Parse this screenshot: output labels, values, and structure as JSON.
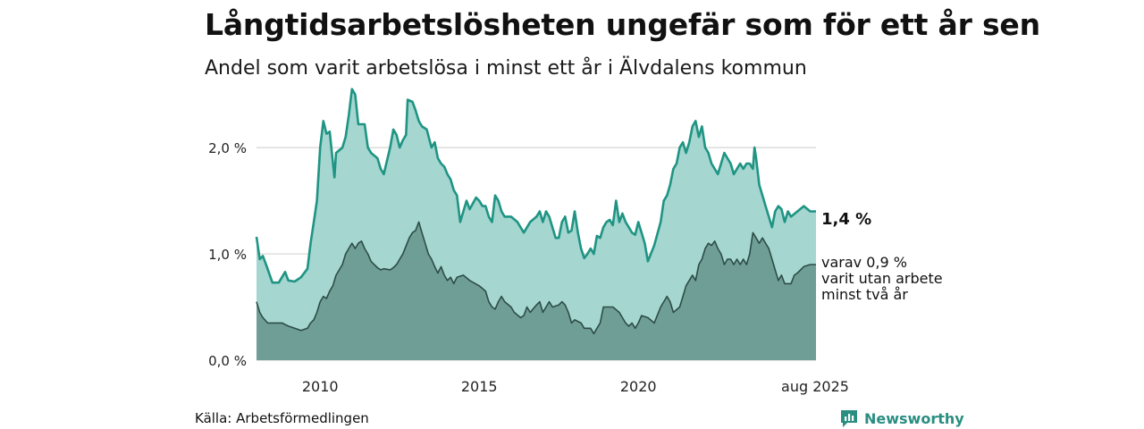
{
  "header": {
    "title": "Långtidsarbetslösheten ungefär som för ett år sen",
    "subtitle": "Andel som varit arbetslösa i minst ett år i Älvdalens kommun"
  },
  "footer": {
    "source": "Källa: Arbetsförmedlingen",
    "brand": "Newsworthy"
  },
  "colors": {
    "total_line": "#1f9483",
    "total_fill": "#a5d6d0",
    "long_line": "#2d4c47",
    "long_fill": "#6f9e97",
    "grid": "#d4d4d4",
    "brand": "#2a8e81"
  },
  "chart_data": {
    "type": "area",
    "title": "Långtidsarbetslösheten ungefär som för ett år sen",
    "subtitle": "Andel som varit arbetslösa i minst ett år i Älvdalens kommun",
    "x_range": [
      2008.0,
      2025.583
    ],
    "ylim": [
      0,
      2.8
    ],
    "y_ticks": [
      0,
      1,
      2
    ],
    "y_tick_labels": [
      "0,0 %",
      "1,0 %",
      "2,0 %"
    ],
    "x_ticks": [
      2010,
      2015,
      2020,
      2025.583
    ],
    "x_tick_labels": [
      "2010",
      "2015",
      "2020",
      "aug 2025"
    ],
    "grid": true,
    "series": [
      {
        "key": "total",
        "end_label": "1,4 %",
        "points": [
          [
            2008.0,
            1.16
          ],
          [
            2008.1,
            0.95
          ],
          [
            2008.2,
            0.98
          ],
          [
            2008.3,
            0.9
          ],
          [
            2008.5,
            0.73
          ],
          [
            2008.7,
            0.73
          ],
          [
            2008.9,
            0.83
          ],
          [
            2009.0,
            0.75
          ],
          [
            2009.2,
            0.74
          ],
          [
            2009.4,
            0.78
          ],
          [
            2009.6,
            0.86
          ],
          [
            2009.7,
            1.1
          ],
          [
            2009.8,
            1.3
          ],
          [
            2009.9,
            1.5
          ],
          [
            2010.0,
            2.0
          ],
          [
            2010.1,
            2.25
          ],
          [
            2010.2,
            2.13
          ],
          [
            2010.3,
            2.15
          ],
          [
            2010.45,
            1.72
          ],
          [
            2010.5,
            1.95
          ],
          [
            2010.7,
            2.0
          ],
          [
            2010.8,
            2.1
          ],
          [
            2010.9,
            2.3
          ],
          [
            2011.0,
            2.55
          ],
          [
            2011.1,
            2.5
          ],
          [
            2011.2,
            2.22
          ],
          [
            2011.4,
            2.22
          ],
          [
            2011.5,
            2.0
          ],
          [
            2011.6,
            1.95
          ],
          [
            2011.8,
            1.9
          ],
          [
            2011.9,
            1.8
          ],
          [
            2012.0,
            1.75
          ],
          [
            2012.2,
            2.0
          ],
          [
            2012.3,
            2.17
          ],
          [
            2012.4,
            2.12
          ],
          [
            2012.5,
            2.0
          ],
          [
            2012.6,
            2.07
          ],
          [
            2012.7,
            2.12
          ],
          [
            2012.75,
            2.45
          ],
          [
            2012.9,
            2.43
          ],
          [
            2013.0,
            2.35
          ],
          [
            2013.1,
            2.25
          ],
          [
            2013.2,
            2.2
          ],
          [
            2013.35,
            2.17
          ],
          [
            2013.5,
            2.0
          ],
          [
            2013.6,
            2.05
          ],
          [
            2013.7,
            1.9
          ],
          [
            2013.8,
            1.85
          ],
          [
            2013.9,
            1.82
          ],
          [
            2014.0,
            1.75
          ],
          [
            2014.1,
            1.7
          ],
          [
            2014.2,
            1.6
          ],
          [
            2014.3,
            1.55
          ],
          [
            2014.4,
            1.3
          ],
          [
            2014.6,
            1.5
          ],
          [
            2014.7,
            1.42
          ],
          [
            2014.9,
            1.53
          ],
          [
            2015.0,
            1.5
          ],
          [
            2015.1,
            1.45
          ],
          [
            2015.2,
            1.45
          ],
          [
            2015.3,
            1.35
          ],
          [
            2015.4,
            1.3
          ],
          [
            2015.5,
            1.55
          ],
          [
            2015.6,
            1.5
          ],
          [
            2015.7,
            1.4
          ],
          [
            2015.8,
            1.35
          ],
          [
            2016.0,
            1.35
          ],
          [
            2016.2,
            1.3
          ],
          [
            2016.4,
            1.2
          ],
          [
            2016.6,
            1.3
          ],
          [
            2016.8,
            1.35
          ],
          [
            2016.9,
            1.4
          ],
          [
            2017.0,
            1.3
          ],
          [
            2017.1,
            1.4
          ],
          [
            2017.2,
            1.35
          ],
          [
            2017.4,
            1.15
          ],
          [
            2017.5,
            1.15
          ],
          [
            2017.6,
            1.3
          ],
          [
            2017.7,
            1.35
          ],
          [
            2017.8,
            1.2
          ],
          [
            2017.9,
            1.22
          ],
          [
            2018.0,
            1.4
          ],
          [
            2018.1,
            1.2
          ],
          [
            2018.2,
            1.05
          ],
          [
            2018.3,
            0.96
          ],
          [
            2018.4,
            1.0
          ],
          [
            2018.5,
            1.05
          ],
          [
            2018.6,
            1.0
          ],
          [
            2018.7,
            1.17
          ],
          [
            2018.8,
            1.15
          ],
          [
            2018.9,
            1.25
          ],
          [
            2019.0,
            1.3
          ],
          [
            2019.1,
            1.32
          ],
          [
            2019.2,
            1.27
          ],
          [
            2019.3,
            1.5
          ],
          [
            2019.4,
            1.3
          ],
          [
            2019.5,
            1.38
          ],
          [
            2019.6,
            1.3
          ],
          [
            2019.7,
            1.25
          ],
          [
            2019.8,
            1.2
          ],
          [
            2019.9,
            1.18
          ],
          [
            2020.0,
            1.3
          ],
          [
            2020.1,
            1.2
          ],
          [
            2020.2,
            1.1
          ],
          [
            2020.3,
            0.93
          ],
          [
            2020.5,
            1.08
          ],
          [
            2020.7,
            1.3
          ],
          [
            2020.8,
            1.5
          ],
          [
            2020.9,
            1.55
          ],
          [
            2021.0,
            1.65
          ],
          [
            2021.1,
            1.8
          ],
          [
            2021.2,
            1.85
          ],
          [
            2021.3,
            2.0
          ],
          [
            2021.4,
            2.05
          ],
          [
            2021.5,
            1.95
          ],
          [
            2021.6,
            2.05
          ],
          [
            2021.7,
            2.2
          ],
          [
            2021.8,
            2.25
          ],
          [
            2021.9,
            2.1
          ],
          [
            2022.0,
            2.2
          ],
          [
            2022.1,
            2.0
          ],
          [
            2022.2,
            1.95
          ],
          [
            2022.3,
            1.85
          ],
          [
            2022.4,
            1.8
          ],
          [
            2022.5,
            1.75
          ],
          [
            2022.6,
            1.85
          ],
          [
            2022.7,
            1.95
          ],
          [
            2022.8,
            1.9
          ],
          [
            2022.9,
            1.85
          ],
          [
            2023.0,
            1.75
          ],
          [
            2023.1,
            1.8
          ],
          [
            2023.2,
            1.85
          ],
          [
            2023.3,
            1.8
          ],
          [
            2023.4,
            1.85
          ],
          [
            2023.5,
            1.85
          ],
          [
            2023.6,
            1.8
          ],
          [
            2023.65,
            2.0
          ],
          [
            2023.7,
            1.9
          ],
          [
            2023.8,
            1.65
          ],
          [
            2023.9,
            1.55
          ],
          [
            2024.0,
            1.45
          ],
          [
            2024.1,
            1.35
          ],
          [
            2024.2,
            1.25
          ],
          [
            2024.3,
            1.4
          ],
          [
            2024.4,
            1.45
          ],
          [
            2024.5,
            1.42
          ],
          [
            2024.6,
            1.3
          ],
          [
            2024.7,
            1.4
          ],
          [
            2024.8,
            1.35
          ],
          [
            2025.0,
            1.4
          ],
          [
            2025.2,
            1.45
          ],
          [
            2025.4,
            1.4
          ],
          [
            2025.583,
            1.4
          ]
        ]
      },
      {
        "key": "long",
        "end_label_lines": [
          "varav 0,9 %",
          "varit utan arbete",
          "minst två år"
        ],
        "points": [
          [
            2008.0,
            0.55
          ],
          [
            2008.1,
            0.45
          ],
          [
            2008.2,
            0.4
          ],
          [
            2008.35,
            0.35
          ],
          [
            2008.6,
            0.35
          ],
          [
            2008.8,
            0.35
          ],
          [
            2009.0,
            0.32
          ],
          [
            2009.2,
            0.3
          ],
          [
            2009.4,
            0.28
          ],
          [
            2009.6,
            0.3
          ],
          [
            2009.7,
            0.35
          ],
          [
            2009.8,
            0.38
          ],
          [
            2009.9,
            0.45
          ],
          [
            2010.0,
            0.55
          ],
          [
            2010.1,
            0.6
          ],
          [
            2010.2,
            0.58
          ],
          [
            2010.3,
            0.65
          ],
          [
            2010.4,
            0.7
          ],
          [
            2010.5,
            0.8
          ],
          [
            2010.6,
            0.85
          ],
          [
            2010.7,
            0.9
          ],
          [
            2010.8,
            1.0
          ],
          [
            2010.9,
            1.05
          ],
          [
            2011.0,
            1.1
          ],
          [
            2011.1,
            1.05
          ],
          [
            2011.2,
            1.1
          ],
          [
            2011.3,
            1.12
          ],
          [
            2011.4,
            1.05
          ],
          [
            2011.5,
            1.0
          ],
          [
            2011.6,
            0.93
          ],
          [
            2011.7,
            0.9
          ],
          [
            2011.8,
            0.87
          ],
          [
            2011.9,
            0.85
          ],
          [
            2012.0,
            0.86
          ],
          [
            2012.2,
            0.85
          ],
          [
            2012.3,
            0.87
          ],
          [
            2012.4,
            0.9
          ],
          [
            2012.5,
            0.95
          ],
          [
            2012.6,
            1.0
          ],
          [
            2012.8,
            1.15
          ],
          [
            2012.9,
            1.2
          ],
          [
            2013.0,
            1.22
          ],
          [
            2013.1,
            1.3
          ],
          [
            2013.2,
            1.2
          ],
          [
            2013.3,
            1.1
          ],
          [
            2013.4,
            1.0
          ],
          [
            2013.5,
            0.95
          ],
          [
            2013.6,
            0.88
          ],
          [
            2013.7,
            0.82
          ],
          [
            2013.8,
            0.88
          ],
          [
            2013.9,
            0.8
          ],
          [
            2014.0,
            0.75
          ],
          [
            2014.1,
            0.78
          ],
          [
            2014.2,
            0.72
          ],
          [
            2014.3,
            0.78
          ],
          [
            2014.5,
            0.8
          ],
          [
            2014.7,
            0.75
          ],
          [
            2015.0,
            0.7
          ],
          [
            2015.2,
            0.65
          ],
          [
            2015.3,
            0.55
          ],
          [
            2015.4,
            0.5
          ],
          [
            2015.5,
            0.48
          ],
          [
            2015.6,
            0.55
          ],
          [
            2015.7,
            0.6
          ],
          [
            2015.8,
            0.55
          ],
          [
            2016.0,
            0.5
          ],
          [
            2016.1,
            0.45
          ],
          [
            2016.3,
            0.4
          ],
          [
            2016.4,
            0.42
          ],
          [
            2016.5,
            0.5
          ],
          [
            2016.6,
            0.45
          ],
          [
            2016.8,
            0.52
          ],
          [
            2016.9,
            0.55
          ],
          [
            2017.0,
            0.45
          ],
          [
            2017.2,
            0.55
          ],
          [
            2017.3,
            0.5
          ],
          [
            2017.5,
            0.52
          ],
          [
            2017.6,
            0.55
          ],
          [
            2017.7,
            0.52
          ],
          [
            2017.8,
            0.45
          ],
          [
            2017.9,
            0.35
          ],
          [
            2018.0,
            0.38
          ],
          [
            2018.2,
            0.35
          ],
          [
            2018.3,
            0.3
          ],
          [
            2018.5,
            0.3
          ],
          [
            2018.6,
            0.25
          ],
          [
            2018.7,
            0.3
          ],
          [
            2018.8,
            0.35
          ],
          [
            2018.9,
            0.5
          ],
          [
            2019.0,
            0.5
          ],
          [
            2019.2,
            0.5
          ],
          [
            2019.4,
            0.45
          ],
          [
            2019.5,
            0.4
          ],
          [
            2019.6,
            0.35
          ],
          [
            2019.7,
            0.32
          ],
          [
            2019.8,
            0.35
          ],
          [
            2019.9,
            0.3
          ],
          [
            2020.0,
            0.35
          ],
          [
            2020.1,
            0.42
          ],
          [
            2020.3,
            0.4
          ],
          [
            2020.5,
            0.35
          ],
          [
            2020.7,
            0.5
          ],
          [
            2020.8,
            0.55
          ],
          [
            2020.9,
            0.6
          ],
          [
            2021.0,
            0.55
          ],
          [
            2021.1,
            0.45
          ],
          [
            2021.3,
            0.5
          ],
          [
            2021.4,
            0.6
          ],
          [
            2021.5,
            0.7
          ],
          [
            2021.6,
            0.75
          ],
          [
            2021.7,
            0.8
          ],
          [
            2021.8,
            0.75
          ],
          [
            2021.9,
            0.9
          ],
          [
            2022.0,
            0.95
          ],
          [
            2022.1,
            1.05
          ],
          [
            2022.2,
            1.1
          ],
          [
            2022.3,
            1.08
          ],
          [
            2022.4,
            1.12
          ],
          [
            2022.5,
            1.05
          ],
          [
            2022.6,
            1.0
          ],
          [
            2022.7,
            0.9
          ],
          [
            2022.8,
            0.95
          ],
          [
            2022.9,
            0.95
          ],
          [
            2023.0,
            0.9
          ],
          [
            2023.1,
            0.95
          ],
          [
            2023.2,
            0.9
          ],
          [
            2023.3,
            0.95
          ],
          [
            2023.4,
            0.9
          ],
          [
            2023.5,
            1.0
          ],
          [
            2023.6,
            1.2
          ],
          [
            2023.7,
            1.15
          ],
          [
            2023.8,
            1.1
          ],
          [
            2023.9,
            1.15
          ],
          [
            2024.0,
            1.1
          ],
          [
            2024.1,
            1.05
          ],
          [
            2024.2,
            0.95
          ],
          [
            2024.3,
            0.85
          ],
          [
            2024.4,
            0.75
          ],
          [
            2024.5,
            0.8
          ],
          [
            2024.6,
            0.72
          ],
          [
            2024.8,
            0.72
          ],
          [
            2024.9,
            0.8
          ],
          [
            2025.0,
            0.82
          ],
          [
            2025.2,
            0.88
          ],
          [
            2025.4,
            0.9
          ],
          [
            2025.583,
            0.9
          ]
        ]
      }
    ]
  }
}
